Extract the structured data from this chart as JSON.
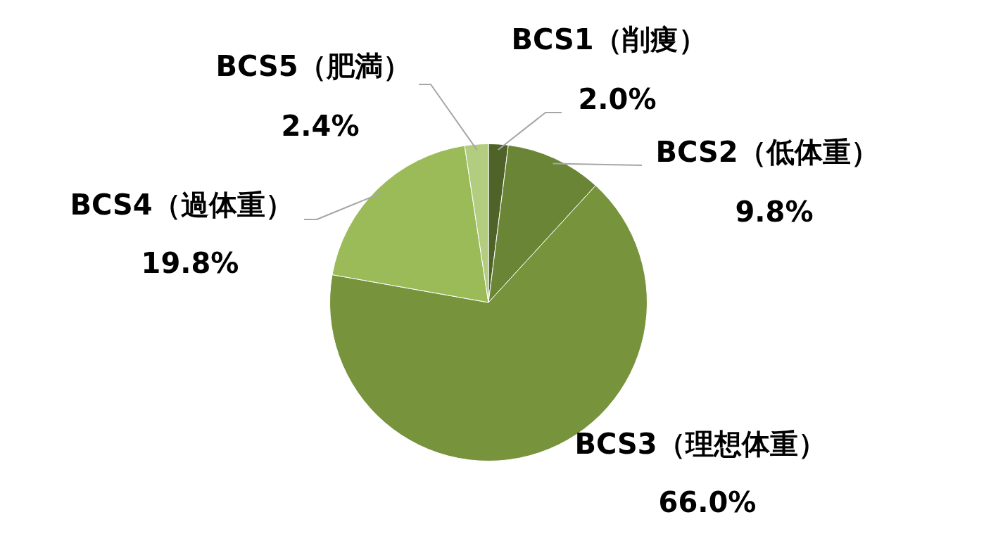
{
  "chart_data": {
    "type": "pie",
    "categories": [
      "BCS1（削痩）",
      "BCS2（低体重）",
      "BCS3（理想体重）",
      "BCS4（過体重）",
      "BCS5（肥満）"
    ],
    "values": [
      2.0,
      9.8,
      66.0,
      19.8,
      2.4
    ],
    "colors": [
      "#4f6228",
      "#6a8535",
      "#77933c",
      "#9bbb59",
      "#b2cc80"
    ],
    "value_labels": [
      "2.0%",
      "9.8%",
      "66.0%",
      "19.8%",
      "2.4%"
    ]
  }
}
